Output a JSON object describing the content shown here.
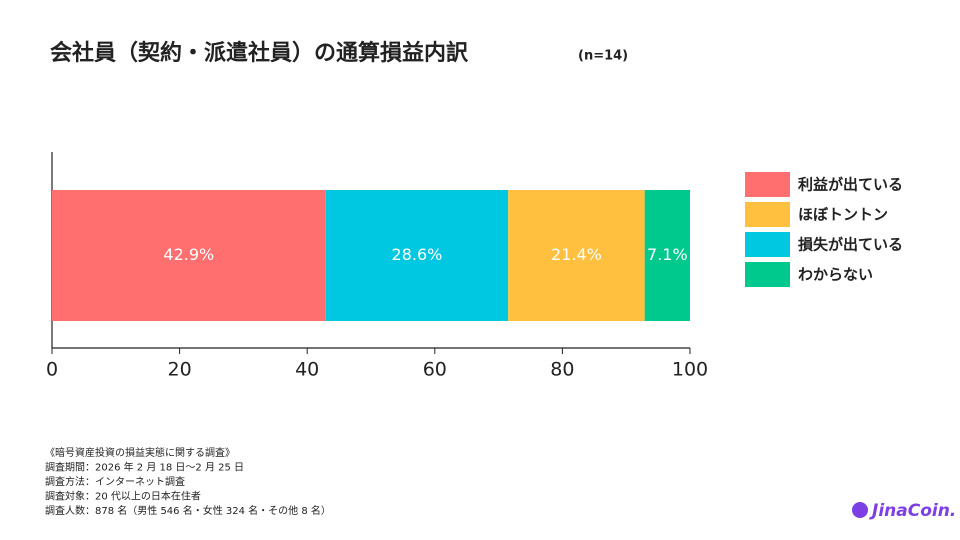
{
  "chart_data": {
    "type": "bar",
    "orientation": "horizontal",
    "stacked": true,
    "title": "会社員（契約・派遣社員）の通算損益内訳",
    "subtitle": "(n=14)",
    "categories": [
      null
    ],
    "series": [
      {
        "name": "利益が出ている",
        "color": "#ff6f6f",
        "values": [
          42.9
        ],
        "value_labels": [
          "42.9%"
        ]
      },
      {
        "name": "損失が出ている",
        "color": "#00c8e0",
        "values": [
          28.6
        ],
        "value_labels": [
          "28.6%"
        ]
      },
      {
        "name": "ほぼトントン",
        "color": "#ffbf3f",
        "values": [
          21.4
        ],
        "value_labels": [
          "21.4%"
        ]
      },
      {
        "name": "わからない",
        "color": "#00c98d",
        "values": [
          7.1
        ],
        "value_labels": [
          "7.1%"
        ]
      }
    ],
    "legend_order": [
      0,
      2,
      1,
      3
    ],
    "legend": "right",
    "xlim": [
      0,
      100
    ],
    "xticks": [
      0,
      20,
      40,
      60,
      80,
      100
    ]
  },
  "notes": [
    "《暗号資産投資の損益実態に関する調査》",
    "調査期間：2026 年 2 月 18 日〜2 月 25 日",
    "調査方法：インターネット調査",
    "調査対象：20 代以上の日本在住者",
    "調査人数：878 名（男性 546 名・女性 324 名・その他 8 名）"
  ],
  "logo": "JinaCoin."
}
